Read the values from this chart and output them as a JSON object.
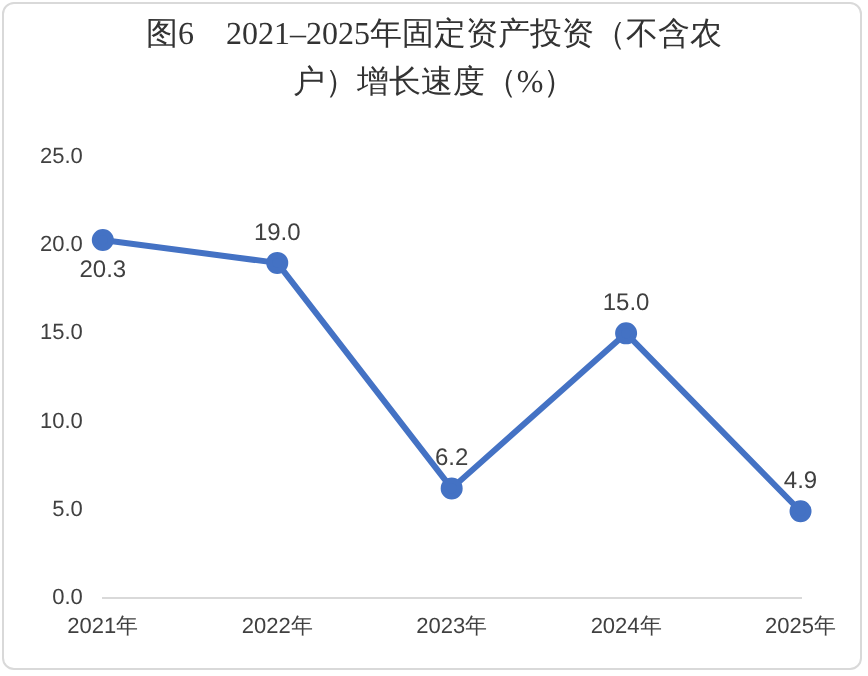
{
  "chart_data": {
    "type": "line",
    "title": "图6　2021–2025年固定资产投资（不含农户）增长速度（%）",
    "categories": [
      "2021年",
      "2022年",
      "2023年",
      "2024年",
      "2025年"
    ],
    "series": [
      {
        "color": "#4472c4",
        "values": [
          20.3,
          19.0,
          6.2,
          15.0,
          4.9
        ],
        "value_labels": [
          "20.3",
          "19.0",
          "6.2",
          "15.0",
          "4.9"
        ]
      }
    ],
    "ylim": [
      0,
      25
    ],
    "yticks": [
      {
        "value": 0,
        "label": "0.0"
      },
      {
        "value": 5,
        "label": "5.0"
      },
      {
        "value": 10,
        "label": "10.0"
      },
      {
        "value": 15,
        "label": "15.0"
      },
      {
        "value": 20,
        "label": "20.0"
      },
      {
        "value": 25,
        "label": "25.0"
      }
    ],
    "grid": false,
    "legend": false,
    "marker": "circle",
    "line_style": "solid"
  }
}
